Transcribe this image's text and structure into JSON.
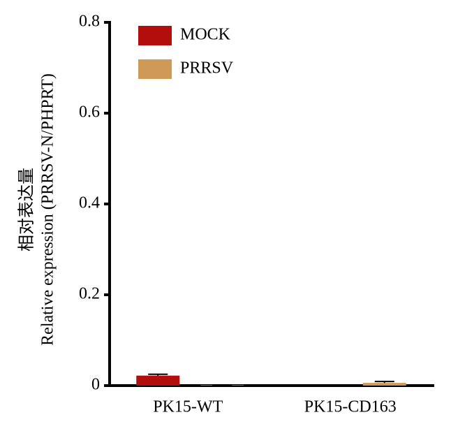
{
  "chart_data": {
    "type": "bar",
    "ylabel": [
      "相对表达量",
      "Relative expression (PRRSV-N/PHPRT)"
    ],
    "categories": [
      "PK15-WT",
      "PK15-CD163"
    ],
    "series": [
      {
        "name": "MOCK",
        "color": "#b30e0e",
        "values": [
          0.022,
          0
        ],
        "errors": [
          0.003,
          0
        ]
      },
      {
        "name": "PRRSV",
        "color": "#cf9a55",
        "values": [
          0.001,
          0.006
        ],
        "errors": [
          0.0005,
          0.003
        ]
      }
    ],
    "ylim": [
      0,
      0.8
    ],
    "yticks": [
      0,
      0.2,
      0.4,
      0.6,
      0.8
    ],
    "legend": "upper left"
  }
}
